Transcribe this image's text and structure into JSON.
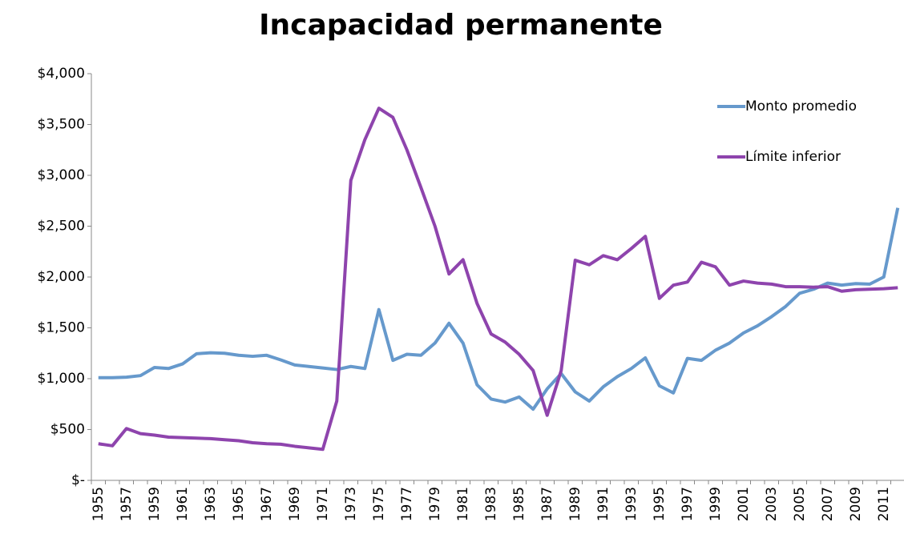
{
  "chart_data": {
    "type": "line",
    "title": "Incapacidad permanente",
    "categories": [
      "1955",
      null,
      "1957",
      null,
      "1959",
      null,
      "1961",
      null,
      "1963",
      null,
      "1965",
      null,
      "1967",
      null,
      "1969",
      null,
      "1971",
      null,
      "1973",
      null,
      "1975",
      null,
      "1977",
      null,
      "1979",
      null,
      "1981",
      null,
      "1983",
      null,
      "1985",
      null,
      "1987",
      null,
      "1989",
      null,
      "1991",
      null,
      "1993",
      null,
      "1995",
      null,
      "1997",
      null,
      "1999",
      null,
      "2001",
      null,
      "2003",
      null,
      "2005",
      null,
      "2007",
      null,
      "2009",
      null,
      "2011",
      null
    ],
    "series": [
      {
        "name": "Monto promedio",
        "color": "#6699cc",
        "values": [
          1010,
          1010,
          1015,
          1030,
          1110,
          1100,
          1145,
          1245,
          1255,
          1250,
          1230,
          1220,
          1230,
          1185,
          1135,
          1120,
          1105,
          1090,
          1120,
          1100,
          1680,
          1180,
          1240,
          1230,
          1350,
          1545,
          1350,
          940,
          800,
          770,
          820,
          700,
          900,
          1050,
          870,
          780,
          920,
          1020,
          1100,
          1205,
          930,
          860,
          1200,
          1180,
          1280,
          1350,
          1450,
          1520,
          1610,
          1710,
          1840,
          1880,
          1940,
          1920,
          1935,
          1930,
          2000,
          2680
        ]
      },
      {
        "name": "Límite inferior",
        "color": "#8e44ad",
        "values": [
          360,
          340,
          510,
          460,
          445,
          425,
          420,
          415,
          410,
          400,
          390,
          370,
          360,
          355,
          335,
          320,
          305,
          780,
          2950,
          3350,
          3660,
          3570,
          3250,
          2880,
          2500,
          2030,
          2170,
          1740,
          1440,
          1360,
          1240,
          1080,
          640,
          1080,
          2165,
          2120,
          2210,
          2170,
          2280,
          2400,
          1790,
          1920,
          1950,
          2145,
          2100,
          1920,
          1960,
          1940,
          1930,
          1905,
          1905,
          1900,
          1905,
          1860,
          1875,
          1880,
          1885,
          1895
        ]
      }
    ],
    "ylim": [
      0,
      4000
    ],
    "yticks": [
      {
        "value": 0,
        "label": "$-"
      },
      {
        "value": 500,
        "label": "$500"
      },
      {
        "value": 1000,
        "label": "$1,000"
      },
      {
        "value": 1500,
        "label": "$1,500"
      },
      {
        "value": 2000,
        "label": "$2,000"
      },
      {
        "value": 2500,
        "label": "$2,500"
      },
      {
        "value": 3000,
        "label": "$3,000"
      },
      {
        "value": 3500,
        "label": "$3,500"
      },
      {
        "value": 4000,
        "label": "$4,000"
      }
    ],
    "grid": false,
    "legend": "top-right"
  }
}
